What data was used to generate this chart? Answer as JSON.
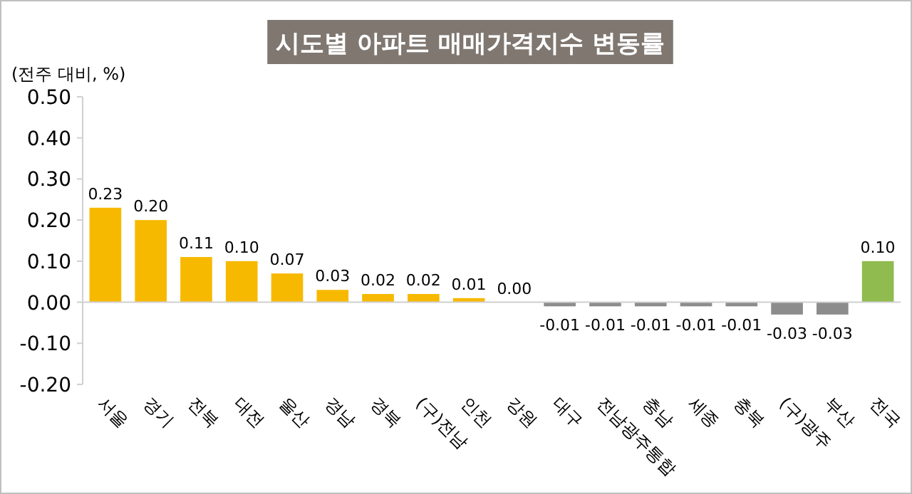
{
  "chart_data": {
    "type": "bar",
    "title": "시도별 아파트 매매가격지수 변동률",
    "ylabel": "(전주 대비, %)",
    "categories": [
      "서울",
      "경기",
      "전북",
      "대전",
      "울산",
      "경남",
      "경북",
      "(구)전남",
      "인천",
      "강원",
      "대구",
      "전남광주통합",
      "충남",
      "세종",
      "충북",
      "(구)광주",
      "부산",
      "전국"
    ],
    "values": [
      0.23,
      0.2,
      0.11,
      0.1,
      0.07,
      0.03,
      0.02,
      0.02,
      0.01,
      0.0,
      -0.01,
      -0.01,
      -0.01,
      -0.01,
      -0.01,
      -0.03,
      -0.03,
      0.1
    ],
    "colors": [
      "#f7b900",
      "#f7b900",
      "#f7b900",
      "#f7b900",
      "#f7b900",
      "#f7b900",
      "#f7b900",
      "#f7b900",
      "#f7b900",
      "#f7b900",
      "#8c8c8c",
      "#8c8c8c",
      "#8c8c8c",
      "#8c8c8c",
      "#8c8c8c",
      "#8c8c8c",
      "#8c8c8c",
      "#8fbb4f"
    ],
    "ylim": [
      -0.2,
      0.5
    ],
    "yticks": [
      {
        "value": -0.2,
        "label": "-0.20"
      },
      {
        "value": -0.1,
        "label": "-0.10"
      },
      {
        "value": 0,
        "label": "0.00"
      },
      {
        "value": 0.1,
        "label": "0.10"
      },
      {
        "value": 0.2,
        "label": "0.20"
      },
      {
        "value": 0.3,
        "label": "0.30"
      },
      {
        "value": 0.4,
        "label": "0.40"
      },
      {
        "value": 0.5,
        "label": "0.50"
      }
    ],
    "value_labels": [
      "0.23",
      "0.20",
      "0.11",
      "0.10",
      "0.07",
      "0.03",
      "0.02",
      "0.02",
      "0.01",
      "0.00",
      "-0.01",
      "-0.01",
      "-0.01",
      "-0.01",
      "-0.01",
      "-0.03",
      "-0.03",
      "0.10"
    ]
  }
}
